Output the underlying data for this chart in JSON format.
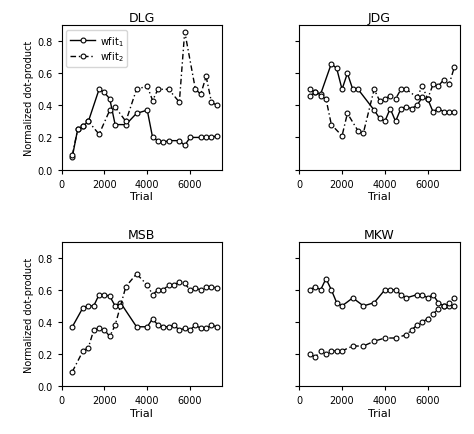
{
  "titles": [
    "DLG",
    "JDG",
    "MSB",
    "MKW"
  ],
  "xlabel": "Trial",
  "ylabel": "Normalized dot-product",
  "legend_labels": [
    "wfit$_1$",
    "wfit$_2$"
  ],
  "xlim": [
    0,
    7500
  ],
  "ylim": [
    0,
    0.9
  ],
  "xticks": [
    0,
    2000,
    4000,
    6000
  ],
  "yticks": [
    0,
    0.2,
    0.4,
    0.6,
    0.8
  ],
  "DLG": {
    "wfit1_x": [
      500,
      750,
      1000,
      1250,
      1750,
      2000,
      2250,
      2500,
      3000,
      3500,
      4000,
      4250,
      4500,
      4750,
      5000,
      5500,
      5750,
      6000,
      6500,
      6750,
      7000,
      7250
    ],
    "wfit1_y": [
      0.08,
      0.25,
      0.27,
      0.3,
      0.5,
      0.48,
      0.44,
      0.28,
      0.28,
      0.35,
      0.37,
      0.2,
      0.18,
      0.17,
      0.18,
      0.18,
      0.15,
      0.2,
      0.2,
      0.2,
      0.2,
      0.21
    ],
    "wfit2_x": [
      500,
      750,
      1000,
      1250,
      1750,
      2250,
      2500,
      3000,
      3500,
      4000,
      4250,
      4500,
      5000,
      5500,
      5750,
      6250,
      6500,
      6750,
      7000,
      7250
    ],
    "wfit2_y": [
      0.09,
      0.25,
      0.27,
      0.3,
      0.22,
      0.37,
      0.39,
      0.3,
      0.5,
      0.52,
      0.43,
      0.5,
      0.5,
      0.42,
      0.86,
      0.5,
      0.47,
      0.58,
      0.42,
      0.4
    ]
  },
  "JDG": {
    "wfit1_x": [
      500,
      750,
      1000,
      1500,
      1750,
      2000,
      2250,
      2500,
      2750,
      3500,
      3750,
      4000,
      4250,
      4500,
      4750,
      5000,
      5250,
      5500,
      5750,
      6000,
      6250,
      6500,
      6750,
      7000,
      7250
    ],
    "wfit1_y": [
      0.5,
      0.48,
      0.47,
      0.66,
      0.63,
      0.5,
      0.6,
      0.5,
      0.5,
      0.37,
      0.32,
      0.3,
      0.38,
      0.3,
      0.38,
      0.39,
      0.38,
      0.4,
      0.45,
      0.44,
      0.36,
      0.38,
      0.36,
      0.36,
      0.36
    ],
    "wfit2_x": [
      500,
      750,
      1000,
      1250,
      1500,
      2000,
      2250,
      2750,
      3000,
      3500,
      3750,
      4000,
      4250,
      4500,
      4750,
      5000,
      5500,
      5750,
      6000,
      6250,
      6500,
      6750,
      7000,
      7250
    ],
    "wfit2_y": [
      0.46,
      0.48,
      0.46,
      0.44,
      0.28,
      0.21,
      0.35,
      0.24,
      0.23,
      0.5,
      0.43,
      0.44,
      0.46,
      0.44,
      0.5,
      0.5,
      0.45,
      0.52,
      0.44,
      0.53,
      0.52,
      0.56,
      0.53,
      0.64
    ]
  },
  "MSB": {
    "wfit1_x": [
      500,
      1000,
      1250,
      1500,
      1750,
      2000,
      2250,
      2500,
      2750,
      3500,
      4000,
      4250,
      4500,
      4750,
      5000,
      5250,
      5500,
      5750,
      6000,
      6250,
      6500,
      6750,
      7000,
      7250
    ],
    "wfit1_y": [
      0.37,
      0.49,
      0.5,
      0.5,
      0.57,
      0.57,
      0.56,
      0.5,
      0.52,
      0.37,
      0.37,
      0.42,
      0.38,
      0.37,
      0.37,
      0.38,
      0.35,
      0.36,
      0.35,
      0.38,
      0.36,
      0.36,
      0.38,
      0.37
    ],
    "wfit2_x": [
      500,
      1000,
      1250,
      1500,
      1750,
      2000,
      2250,
      2500,
      2750,
      3000,
      3500,
      4000,
      4250,
      4500,
      4750,
      5000,
      5250,
      5500,
      5750,
      6000,
      6250,
      6500,
      6750,
      7000,
      7250
    ],
    "wfit2_y": [
      0.09,
      0.22,
      0.24,
      0.35,
      0.36,
      0.35,
      0.31,
      0.38,
      0.5,
      0.62,
      0.7,
      0.63,
      0.57,
      0.6,
      0.6,
      0.63,
      0.63,
      0.65,
      0.64,
      0.6,
      0.61,
      0.6,
      0.62,
      0.62,
      0.61
    ]
  },
  "MKW": {
    "wfit1_x": [
      500,
      750,
      1000,
      1250,
      1500,
      1750,
      2000,
      2500,
      3000,
      3500,
      4000,
      4250,
      4500,
      4750,
      5000,
      5500,
      5750,
      6000,
      6250,
      6500,
      6750,
      7000,
      7250
    ],
    "wfit1_y": [
      0.6,
      0.62,
      0.6,
      0.67,
      0.6,
      0.52,
      0.5,
      0.55,
      0.5,
      0.52,
      0.6,
      0.6,
      0.6,
      0.57,
      0.55,
      0.57,
      0.57,
      0.55,
      0.57,
      0.52,
      0.5,
      0.5,
      0.5
    ],
    "wfit2_x": [
      500,
      750,
      1000,
      1250,
      1500,
      1750,
      2000,
      2500,
      3000,
      3500,
      4000,
      4500,
      5000,
      5250,
      5500,
      5750,
      6000,
      6250,
      6500,
      6750,
      7000,
      7250
    ],
    "wfit2_y": [
      0.2,
      0.18,
      0.22,
      0.2,
      0.22,
      0.22,
      0.22,
      0.25,
      0.25,
      0.28,
      0.3,
      0.3,
      0.32,
      0.35,
      0.38,
      0.4,
      0.42,
      0.45,
      0.48,
      0.5,
      0.52,
      0.55
    ]
  }
}
